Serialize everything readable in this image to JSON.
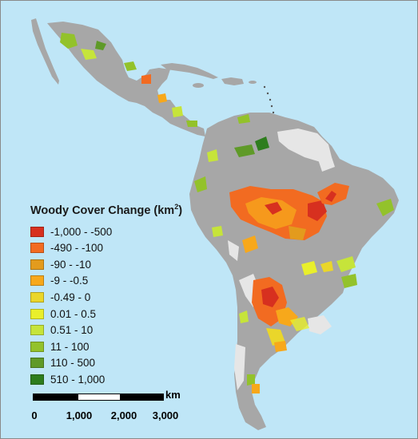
{
  "map": {
    "colors": {
      "ocean": "#bfe6f7",
      "land": "#a7a7a7",
      "no_data": "#e6e6e6"
    }
  },
  "legend": {
    "title_main": "Woody Cover Change (km",
    "title_sup": "2",
    "title_close": ")",
    "items": [
      {
        "label": "-1,000 - -500",
        "color": "#d7301f"
      },
      {
        "label": "-490 - -100",
        "color": "#f26b21"
      },
      {
        "label": "-90 - -10",
        "color": "#e39b1d"
      },
      {
        "label": "-9 - -0.5",
        "color": "#f7a81b"
      },
      {
        "label": "-0.49 - 0",
        "color": "#ead62a"
      },
      {
        "label": "0.01 - 0.5",
        "color": "#e9ef2b"
      },
      {
        "label": "0.51 - 10",
        "color": "#c6e43a"
      },
      {
        "label": "11 - 100",
        "color": "#93c22b"
      },
      {
        "label": "110 - 500",
        "color": "#5f9a28"
      },
      {
        "label": "510 - 1,000",
        "color": "#2e7d1d"
      }
    ]
  },
  "scale": {
    "unit": "km",
    "ticks": [
      "0",
      "1,000",
      "2,000",
      "3,000"
    ]
  }
}
